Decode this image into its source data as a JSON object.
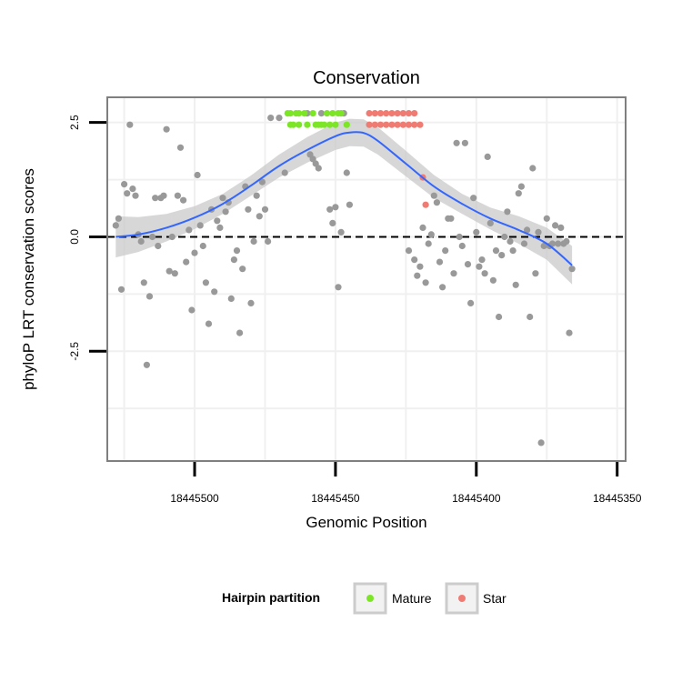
{
  "chart_data": {
    "type": "scatter",
    "title": "Conservation",
    "xlabel": "Genomic Position",
    "ylabel": "phyloP LRT conservation scores",
    "x_reversed": true,
    "xlim": [
      18445531,
      18445347
    ],
    "ylim": [
      -4.9,
      3.05
    ],
    "x_ticks": [
      18445500,
      18445450,
      18445400,
      18445350
    ],
    "x_tick_labels": [
      "18445500",
      "18445450",
      "18445400",
      "18445350"
    ],
    "y_ticks": [
      2.5,
      0.0,
      -2.5
    ],
    "y_tick_labels": [
      "2.5",
      "0.0",
      "-2.5"
    ],
    "hline": 0.0,
    "grid": true,
    "colors": {
      "background": "#ffffff",
      "panel_border": "#7f7f7f",
      "grid": "#f0f0f0",
      "other": "#999999",
      "mature": "#7CE626",
      "star": "#F07B72",
      "smooth": "#3366FF",
      "ribbon": "#c9c9c9"
    },
    "legend": {
      "title": "Hairpin partition",
      "position": "bottom",
      "entries": [
        {
          "label": "Mature",
          "key": "mature"
        },
        {
          "label": "Star",
          "key": "star"
        }
      ]
    },
    "series": [
      {
        "name": "Other",
        "key": "other",
        "points": [
          [
            18445528,
            0.25
          ],
          [
            18445527,
            0.4
          ],
          [
            18445526,
            -1.15
          ],
          [
            18445525,
            1.15
          ],
          [
            18445524,
            0.95
          ],
          [
            18445523,
            2.45
          ],
          [
            18445522,
            1.05
          ],
          [
            18445521,
            0.9
          ],
          [
            18445520,
            0.05
          ],
          [
            18445519,
            -0.1
          ],
          [
            18445518,
            -1.0
          ],
          [
            18445517,
            -2.8
          ],
          [
            18445516,
            -1.3
          ],
          [
            18445515,
            0.0
          ],
          [
            18445514,
            0.85
          ],
          [
            18445513,
            -0.2
          ],
          [
            18445512,
            0.85
          ],
          [
            18445511,
            0.9
          ],
          [
            18445510,
            2.35
          ],
          [
            18445509,
            -0.75
          ],
          [
            18445508,
            0.0
          ],
          [
            18445507,
            -0.8
          ],
          [
            18445506,
            0.9
          ],
          [
            18445505,
            1.95
          ],
          [
            18445504,
            0.8
          ],
          [
            18445503,
            -0.55
          ],
          [
            18445502,
            0.15
          ],
          [
            18445501,
            -1.6
          ],
          [
            18445500,
            -0.35
          ],
          [
            18445499,
            1.35
          ],
          [
            18445498,
            0.25
          ],
          [
            18445497,
            -0.2
          ],
          [
            18445496,
            -1.0
          ],
          [
            18445495,
            -1.9
          ],
          [
            18445494,
            0.6
          ],
          [
            18445493,
            -1.2
          ],
          [
            18445492,
            0.35
          ],
          [
            18445491,
            0.2
          ],
          [
            18445490,
            0.85
          ],
          [
            18445489,
            0.55
          ],
          [
            18445488,
            0.75
          ],
          [
            18445487,
            -1.35
          ],
          [
            18445486,
            -0.5
          ],
          [
            18445485,
            -0.3
          ],
          [
            18445484,
            -2.1
          ],
          [
            18445483,
            -0.7
          ],
          [
            18445482,
            1.1
          ],
          [
            18445481,
            0.6
          ],
          [
            18445480,
            -1.45
          ],
          [
            18445479,
            -0.1
          ],
          [
            18445478,
            0.9
          ],
          [
            18445477,
            0.45
          ],
          [
            18445476,
            1.2
          ],
          [
            18445475,
            0.6
          ],
          [
            18445474,
            -0.1
          ],
          [
            18445473,
            2.6
          ],
          [
            18445470,
            2.6
          ],
          [
            18445468,
            1.4
          ],
          [
            18445460,
            2.7
          ],
          [
            18445459,
            1.8
          ],
          [
            18445458,
            1.7
          ],
          [
            18445457,
            1.6
          ],
          [
            18445456,
            1.5
          ],
          [
            18445455,
            2.7
          ],
          [
            18445452,
            0.6
          ],
          [
            18445451,
            0.3
          ],
          [
            18445450,
            0.65
          ],
          [
            18445449,
            -1.1
          ],
          [
            18445448,
            0.1
          ],
          [
            18445447,
            2.7
          ],
          [
            18445446,
            1.4
          ],
          [
            18445445,
            0.7
          ],
          [
            18445424,
            -0.3
          ],
          [
            18445422,
            -0.5
          ],
          [
            18445421,
            -0.85
          ],
          [
            18445420,
            -0.65
          ],
          [
            18445419,
            0.2
          ],
          [
            18445418,
            -1.0
          ],
          [
            18445417,
            -0.15
          ],
          [
            18445416,
            0.05
          ],
          [
            18445415,
            0.9
          ],
          [
            18445414,
            0.75
          ],
          [
            18445413,
            -0.55
          ],
          [
            18445412,
            -1.1
          ],
          [
            18445411,
            -0.3
          ],
          [
            18445410,
            0.4
          ],
          [
            18445409,
            0.4
          ],
          [
            18445408,
            -0.8
          ],
          [
            18445407,
            2.05
          ],
          [
            18445406,
            0.0
          ],
          [
            18445405,
            -0.2
          ],
          [
            18445404,
            2.05
          ],
          [
            18445403,
            -0.6
          ],
          [
            18445402,
            -1.45
          ],
          [
            18445401,
            0.85
          ],
          [
            18445400,
            0.1
          ],
          [
            18445399,
            -0.65
          ],
          [
            18445398,
            -0.5
          ],
          [
            18445397,
            -0.8
          ],
          [
            18445396,
            1.75
          ],
          [
            18445395,
            0.3
          ],
          [
            18445394,
            -0.95
          ],
          [
            18445393,
            -0.3
          ],
          [
            18445392,
            -1.75
          ],
          [
            18445391,
            -0.4
          ],
          [
            18445390,
            0.0
          ],
          [
            18445389,
            0.55
          ],
          [
            18445388,
            -0.1
          ],
          [
            18445387,
            -0.3
          ],
          [
            18445386,
            -1.05
          ],
          [
            18445385,
            0.95
          ],
          [
            18445384,
            1.1
          ],
          [
            18445383,
            -0.15
          ],
          [
            18445382,
            0.15
          ],
          [
            18445381,
            -1.75
          ],
          [
            18445380,
            1.5
          ],
          [
            18445379,
            -0.8
          ],
          [
            18445378,
            0.1
          ],
          [
            18445377,
            -4.5
          ],
          [
            18445376,
            -0.2
          ],
          [
            18445375,
            0.4
          ],
          [
            18445374,
            -0.2
          ],
          [
            18445373,
            -0.15
          ],
          [
            18445372,
            0.25
          ],
          [
            18445371,
            -0.15
          ],
          [
            18445370,
            0.2
          ],
          [
            18445369,
            -0.15
          ],
          [
            18445368,
            -0.1
          ],
          [
            18445367,
            -2.1
          ],
          [
            18445366,
            -0.7
          ]
        ]
      },
      {
        "name": "Mature",
        "key": "mature",
        "points": [
          [
            18445467,
            2.7
          ],
          [
            18445466,
            2.7
          ],
          [
            18445464,
            2.7
          ],
          [
            18445463,
            2.7
          ],
          [
            18445461,
            2.7
          ],
          [
            18445460,
            2.45
          ],
          [
            18445458,
            2.7
          ],
          [
            18445457,
            2.45
          ],
          [
            18445456,
            2.45
          ],
          [
            18445455,
            2.45
          ],
          [
            18445454,
            2.45
          ],
          [
            18445453,
            2.7
          ],
          [
            18445452,
            2.45
          ],
          [
            18445451,
            2.7
          ],
          [
            18445450,
            2.45
          ],
          [
            18445449,
            2.7
          ],
          [
            18445448,
            2.7
          ],
          [
            18445446,
            2.45
          ],
          [
            18445466,
            2.45
          ],
          [
            18445465,
            2.45
          ],
          [
            18445463,
            2.45
          ]
        ]
      },
      {
        "name": "Star",
        "key": "star",
        "points": [
          [
            18445438,
            2.7
          ],
          [
            18445436,
            2.7
          ],
          [
            18445434,
            2.7
          ],
          [
            18445432,
            2.7
          ],
          [
            18445430,
            2.7
          ],
          [
            18445428,
            2.7
          ],
          [
            18445426,
            2.7
          ],
          [
            18445424,
            2.7
          ],
          [
            18445422,
            2.7
          ],
          [
            18445438,
            2.45
          ],
          [
            18445436,
            2.45
          ],
          [
            18445434,
            2.45
          ],
          [
            18445432,
            2.45
          ],
          [
            18445430,
            2.45
          ],
          [
            18445428,
            2.45
          ],
          [
            18445426,
            2.45
          ],
          [
            18445424,
            2.45
          ],
          [
            18445422,
            2.45
          ],
          [
            18445420,
            2.45
          ],
          [
            18445419,
            1.3
          ],
          [
            18445418,
            0.7
          ]
        ]
      }
    ],
    "smooth": [
      [
        18445528,
        0.0
      ],
      [
        18445520,
        0.05
      ],
      [
        18445510,
        0.2
      ],
      [
        18445500,
        0.42
      ],
      [
        18445490,
        0.72
      ],
      [
        18445480,
        1.12
      ],
      [
        18445470,
        1.55
      ],
      [
        18445460,
        1.9
      ],
      [
        18445450,
        2.2
      ],
      [
        18445445,
        2.28
      ],
      [
        18445440,
        2.27
      ],
      [
        18445435,
        2.1
      ],
      [
        18445425,
        1.6
      ],
      [
        18445415,
        1.1
      ],
      [
        18445405,
        0.72
      ],
      [
        18445395,
        0.4
      ],
      [
        18445385,
        0.15
      ],
      [
        18445375,
        -0.15
      ],
      [
        18445366,
        -0.62
      ]
    ],
    "ribbon_half_width": [
      0.45,
      0.38,
      0.3,
      0.25,
      0.22,
      0.22,
      0.25,
      0.28,
      0.3,
      0.3,
      0.3,
      0.3,
      0.28,
      0.25,
      0.22,
      0.24,
      0.3,
      0.35,
      0.42
    ]
  }
}
